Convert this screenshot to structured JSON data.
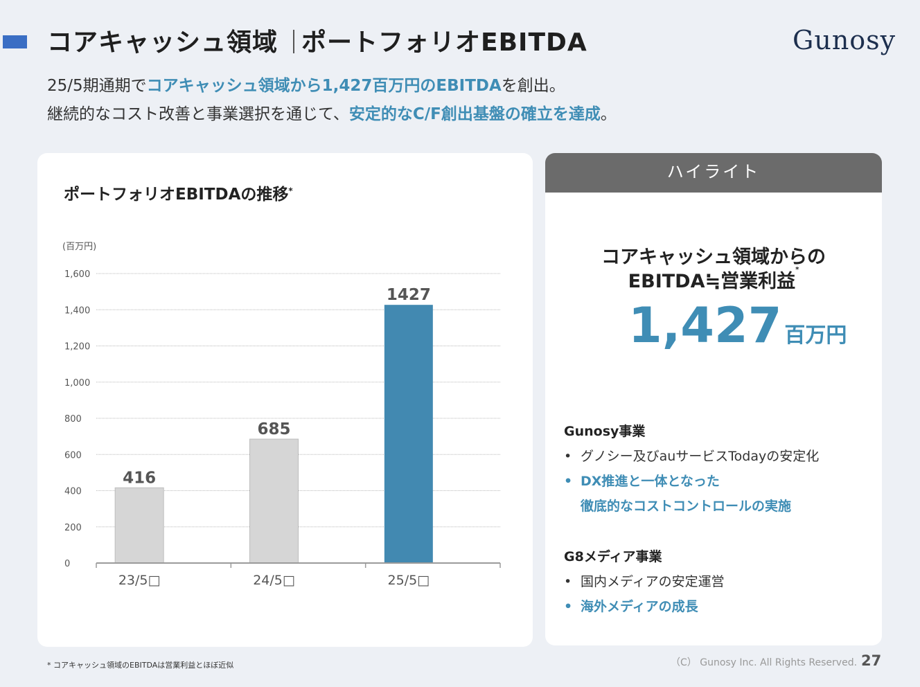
{
  "header": {
    "title_main": "コアキャッシュ領域",
    "title_sub": "ポートフォリオEBITDA",
    "logo": "Gunosy"
  },
  "lead": {
    "line1_a": "25/5期通期で",
    "line1_hl": "コアキャッシュ領域から1,427百万円のEBITDA",
    "line1_b": "を創出。",
    "line2_a": "継続的なコスト改善と事業選択を通じて、",
    "line2_hl": "安定的なC/F創出基盤の確立を達成",
    "line2_b": "。"
  },
  "chart_data": {
    "type": "bar",
    "title": "ポートフォリオEBITDAの推移",
    "title_mark": "*",
    "unit_label": "(百万円)",
    "categories": [
      "23/5□",
      "24/5□",
      "25/5□"
    ],
    "values": [
      416,
      685,
      1427
    ],
    "ylim": [
      0,
      1600
    ],
    "yticks": [
      0,
      200,
      400,
      600,
      800,
      1000,
      1200,
      1400,
      1600
    ],
    "ytick_labels": [
      "0",
      "200",
      "400",
      "600",
      "800",
      "1,000",
      "1,200",
      "1,400",
      "1,600"
    ],
    "data_labels": [
      "416",
      "685",
      "1427"
    ],
    "colors": [
      "#d6d6d6",
      "#d6d6d6",
      "#4289b1"
    ],
    "grid": true
  },
  "highlight": {
    "header": "ハイライト",
    "sub1": "コアキャッシュ領域からの",
    "sub2": "EBITDA≒営業利益",
    "sub2_mark": "*",
    "big_value": "1,427",
    "big_unit": "百万円",
    "sections": [
      {
        "title": "Gunosy事業",
        "items": [
          {
            "text": "グノシー及びauサービスTodayの安定化",
            "highlight": false
          },
          {
            "text": "DX推進と一体となった",
            "cont": "徹底的なコストコントロールの実施",
            "highlight": true
          }
        ]
      },
      {
        "title": "G8メディア事業",
        "items": [
          {
            "text": "国内メディアの安定運営",
            "highlight": false
          },
          {
            "text": "海外メディアの成長",
            "highlight": true
          }
        ]
      }
    ],
    "bullet": "•"
  },
  "footer": {
    "footnote": "* コアキャッシュ領域のEBITDAは営業利益とほぼ近似",
    "copyright": "（C） Gunosy Inc. All Rights Reserved.",
    "page": "27"
  },
  "colors": {
    "accent": "#3a6ec4",
    "highlight_text": "#3f8db5",
    "bar_highlight": "#4289b1",
    "bar_gray": "#d6d6d6"
  }
}
